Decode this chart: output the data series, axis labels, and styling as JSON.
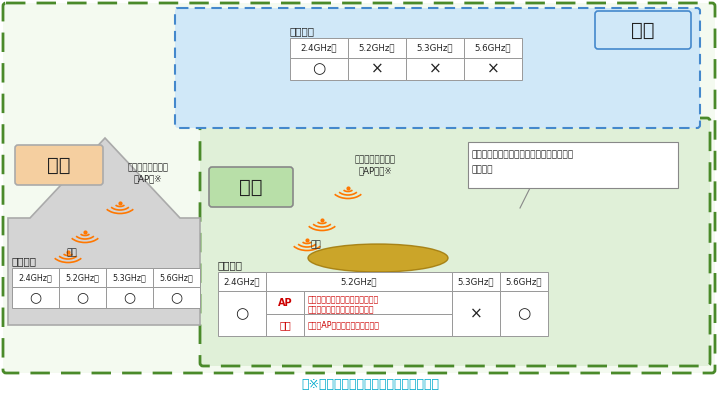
{
  "footnote": "（※　中継器を含みます。以下同じ。）",
  "footnote_color": "#00aacc",
  "text_color": "#222222",
  "red_color": "#cc0000",
  "outer_border_color": "#4a8a2a",
  "sky_border_color": "#4488cc",
  "sky_bg": "#d0e8f8",
  "indoor_label": "屋内",
  "indoor_label_bg": "#f5cfa0",
  "outdoor_label": "屋外",
  "outdoor_label_bg": "#b8dfa8",
  "outdoor_section_bg": "#e0f0d8",
  "sky_label": "上空",
  "indoor_table_title": "使用可否",
  "outdoor_table_title": "使用可否",
  "sky_table_title": "使用可否",
  "sky_headers": [
    "2.4GHz帯",
    "5.2GHz帯",
    "5.3GHz帯",
    "5.6GHz帯"
  ],
  "sky_values": [
    "○",
    "×",
    "×",
    "×"
  ],
  "indoor_headers": [
    "2.4GHz帯",
    "5.2GHz帯",
    "5.3GHz帯",
    "5.6GHz帯"
  ],
  "indoor_values": [
    "○",
    "○",
    "○",
    "○"
  ],
  "outdoor_2_4_val": "○",
  "outdoor_5_3_val": "×",
  "outdoor_5_6_val": "○",
  "outdoor_ap_row_label": "AP",
  "outdoor_ap_desc": "専用の機器を、総合通信局に登録",
  "outdoor_ap_desc2": "の手続きをすることで使用可能",
  "outdoor_terminal_row_label": "端末",
  "outdoor_terminal_desc": "上記のAPと通信する場合は可能",
  "indoor_ap_label": "アクセスポイント\n（AP）※",
  "outdoor_ap_label": "アクセスポイント\n（AP）等※",
  "indoor_terminal_label": "端末",
  "outdoor_terminal_label": "端末",
  "outdoor_note_line1": "車両内、船舶内、航空機内は、「屋内」と",
  "outdoor_note_line2": "同等扱い"
}
